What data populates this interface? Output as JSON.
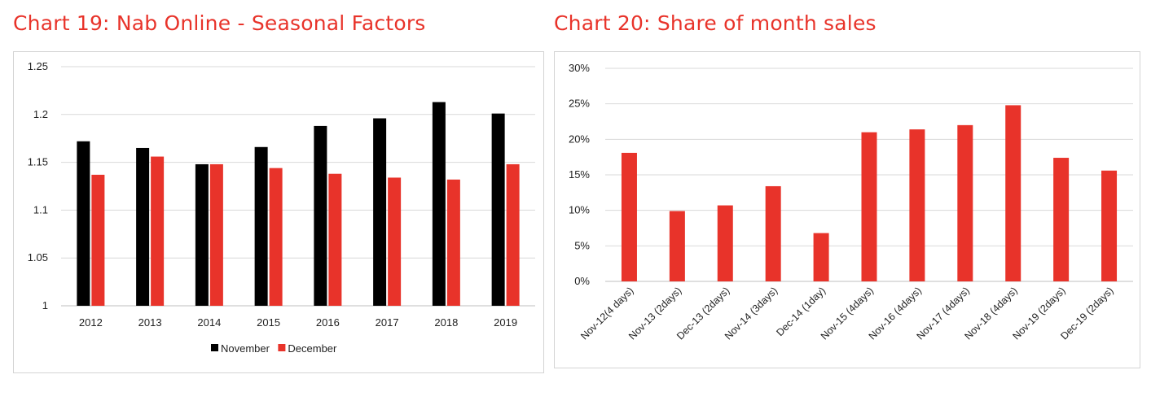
{
  "chart_data": [
    {
      "type": "bar",
      "title": "Chart 19: Nab Online - Seasonal Factors",
      "categories": [
        "2012",
        "2013",
        "2014",
        "2015",
        "2016",
        "2017",
        "2018",
        "2019"
      ],
      "series": [
        {
          "name": "November",
          "color": "#000000",
          "values": [
            1.172,
            1.165,
            1.148,
            1.166,
            1.188,
            1.196,
            1.213,
            1.201
          ]
        },
        {
          "name": "December",
          "color": "#e8332a",
          "values": [
            1.137,
            1.156,
            1.148,
            1.144,
            1.138,
            1.134,
            1.132,
            1.148
          ]
        }
      ],
      "yticks": [
        "1",
        "1.05",
        "1.1",
        "1.15",
        "1.2",
        "1.25"
      ],
      "ylim": [
        1,
        1.25
      ],
      "xlabel": "",
      "ylabel": "",
      "grid": true,
      "legend": "bottom"
    },
    {
      "type": "bar",
      "title": "Chart 20: Share of month sales",
      "categories": [
        "Nov-12(4 days)",
        "Nov-13 (2days)",
        "Dec-13 (2days)",
        "Nov-14 (3days)",
        "Dec-14 (1day)",
        "Nov-15 (4days)",
        "Nov-16 (4days)",
        "Nov-17 (4days)",
        "Nov-18 (4days)",
        "Nov-19 (2days)",
        "Dec-19 (2days)"
      ],
      "series": [
        {
          "color": "#e8332a",
          "values": [
            18.1,
            9.9,
            10.7,
            13.4,
            6.8,
            21.0,
            21.4,
            22.0,
            24.8,
            17.4,
            15.6
          ]
        }
      ],
      "yticks": [
        "0%",
        "5%",
        "10%",
        "15%",
        "20%",
        "25%",
        "30%"
      ],
      "ylim": [
        0,
        30
      ],
      "unit": "%",
      "xlabel": "",
      "ylabel": "",
      "grid": true,
      "legend": "none"
    }
  ]
}
